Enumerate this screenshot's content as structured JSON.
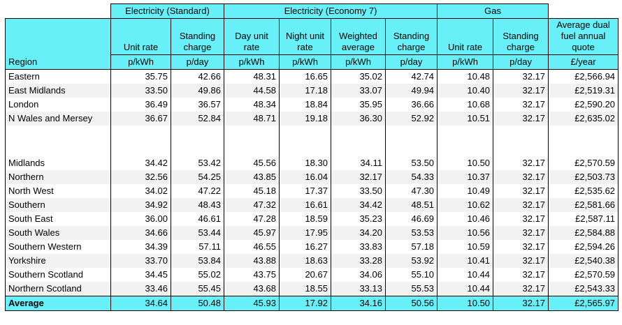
{
  "groups": {
    "standard": "Electricity (Standard)",
    "economy7": "Electricity (Economy 7)",
    "gas": "Gas"
  },
  "columns": [
    "Region",
    "Unit rate",
    "Standing charge",
    "Day unit rate",
    "Night unit rate",
    "Weighted average",
    "Standing charge",
    "Unit rate",
    "Standing charge",
    "Average dual fuel annual quote"
  ],
  "units": [
    "",
    "p/kWh",
    "p/day",
    "p/kWh",
    "p/kWh",
    "p/kWh",
    "p/day",
    "p/kWh",
    "p/day",
    "£/year"
  ],
  "rows": [
    [
      "Eastern",
      "35.75",
      "42.66",
      "48.31",
      "16.65",
      "35.02",
      "42.74",
      "10.48",
      "32.17",
      "£2,566.94"
    ],
    [
      "East Midlands",
      "33.50",
      "49.86",
      "44.58",
      "17.18",
      "33.07",
      "49.94",
      "10.40",
      "32.17",
      "£2,519.31"
    ],
    [
      "London",
      "36.49",
      "36.57",
      "48.34",
      "18.84",
      "35.95",
      "36.66",
      "10.68",
      "32.17",
      "£2,590.20"
    ],
    [
      "N Wales and Mersey",
      "36.67",
      "52.84",
      "48.71",
      "19.18",
      "36.30",
      "52.92",
      "10.51",
      "32.17",
      "£2,635.02"
    ],
    [
      "Midlands",
      "34.42",
      "53.42",
      "45.56",
      "18.30",
      "34.11",
      "53.50",
      "10.50",
      "32.17",
      "£2,570.59"
    ],
    [
      "Northern",
      "32.56",
      "54.25",
      "43.85",
      "16.04",
      "32.17",
      "54.33",
      "10.37",
      "32.17",
      "£2,503.73"
    ],
    [
      "North West",
      "34.02",
      "47.22",
      "45.18",
      "17.37",
      "33.50",
      "47.30",
      "10.49",
      "32.17",
      "£2,535.62"
    ],
    [
      "Southern",
      "34.92",
      "48.43",
      "47.32",
      "16.61",
      "34.42",
      "48.51",
      "10.62",
      "32.17",
      "£2,581.66"
    ],
    [
      "South East",
      "36.00",
      "46.61",
      "47.28",
      "18.59",
      "35.23",
      "46.69",
      "10.46",
      "32.17",
      "£2,587.11"
    ],
    [
      "South Wales",
      "34.66",
      "53.44",
      "45.97",
      "17.95",
      "34.20",
      "53.53",
      "10.56",
      "32.17",
      "£2,584.88"
    ],
    [
      "Southern Western",
      "34.39",
      "57.11",
      "46.55",
      "16.27",
      "33.83",
      "57.18",
      "10.59",
      "32.17",
      "£2,594.26"
    ],
    [
      "Yorkshire",
      "33.70",
      "53.84",
      "43.88",
      "18.63",
      "33.28",
      "53.92",
      "10.41",
      "32.17",
      "£2,540.38"
    ],
    [
      "Southern Scotland",
      "34.45",
      "55.02",
      "43.75",
      "20.67",
      "34.06",
      "55.10",
      "10.44",
      "32.17",
      "£2,570.59"
    ],
    [
      "Northern Scotland",
      "33.46",
      "55.45",
      "43.68",
      "18.55",
      "33.13",
      "55.53",
      "10.44",
      "32.17",
      "£2,543.33"
    ]
  ],
  "average": [
    "Average",
    "34.64",
    "50.48",
    "45.93",
    "17.92",
    "34.16",
    "50.56",
    "10.50",
    "32.17",
    "£2,565.97"
  ],
  "colors": {
    "header": "#67f0f7",
    "stripe": "#f2f2f2"
  }
}
